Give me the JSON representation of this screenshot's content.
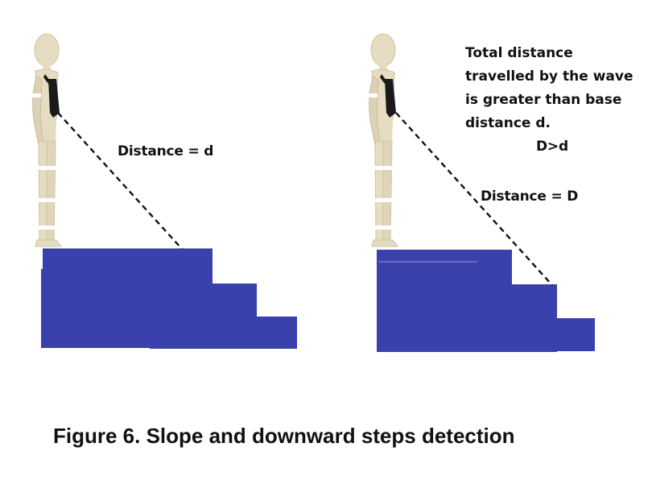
{
  "left_panel": {
    "distance_label": "Distance = d"
  },
  "right_panel": {
    "note_lines": [
      "Total distance",
      "travelled by the wave",
      "is greater than base",
      "distance d."
    ],
    "inequality": "D>d",
    "distance_label": "Distance = D"
  },
  "caption": "Figure 6. Slope and downward steps detection",
  "colors": {
    "stairs": "#3a41ad",
    "mannequin": "#e6dcc1",
    "sensor_pack": "#1a1a1a",
    "beam": "#111111"
  }
}
